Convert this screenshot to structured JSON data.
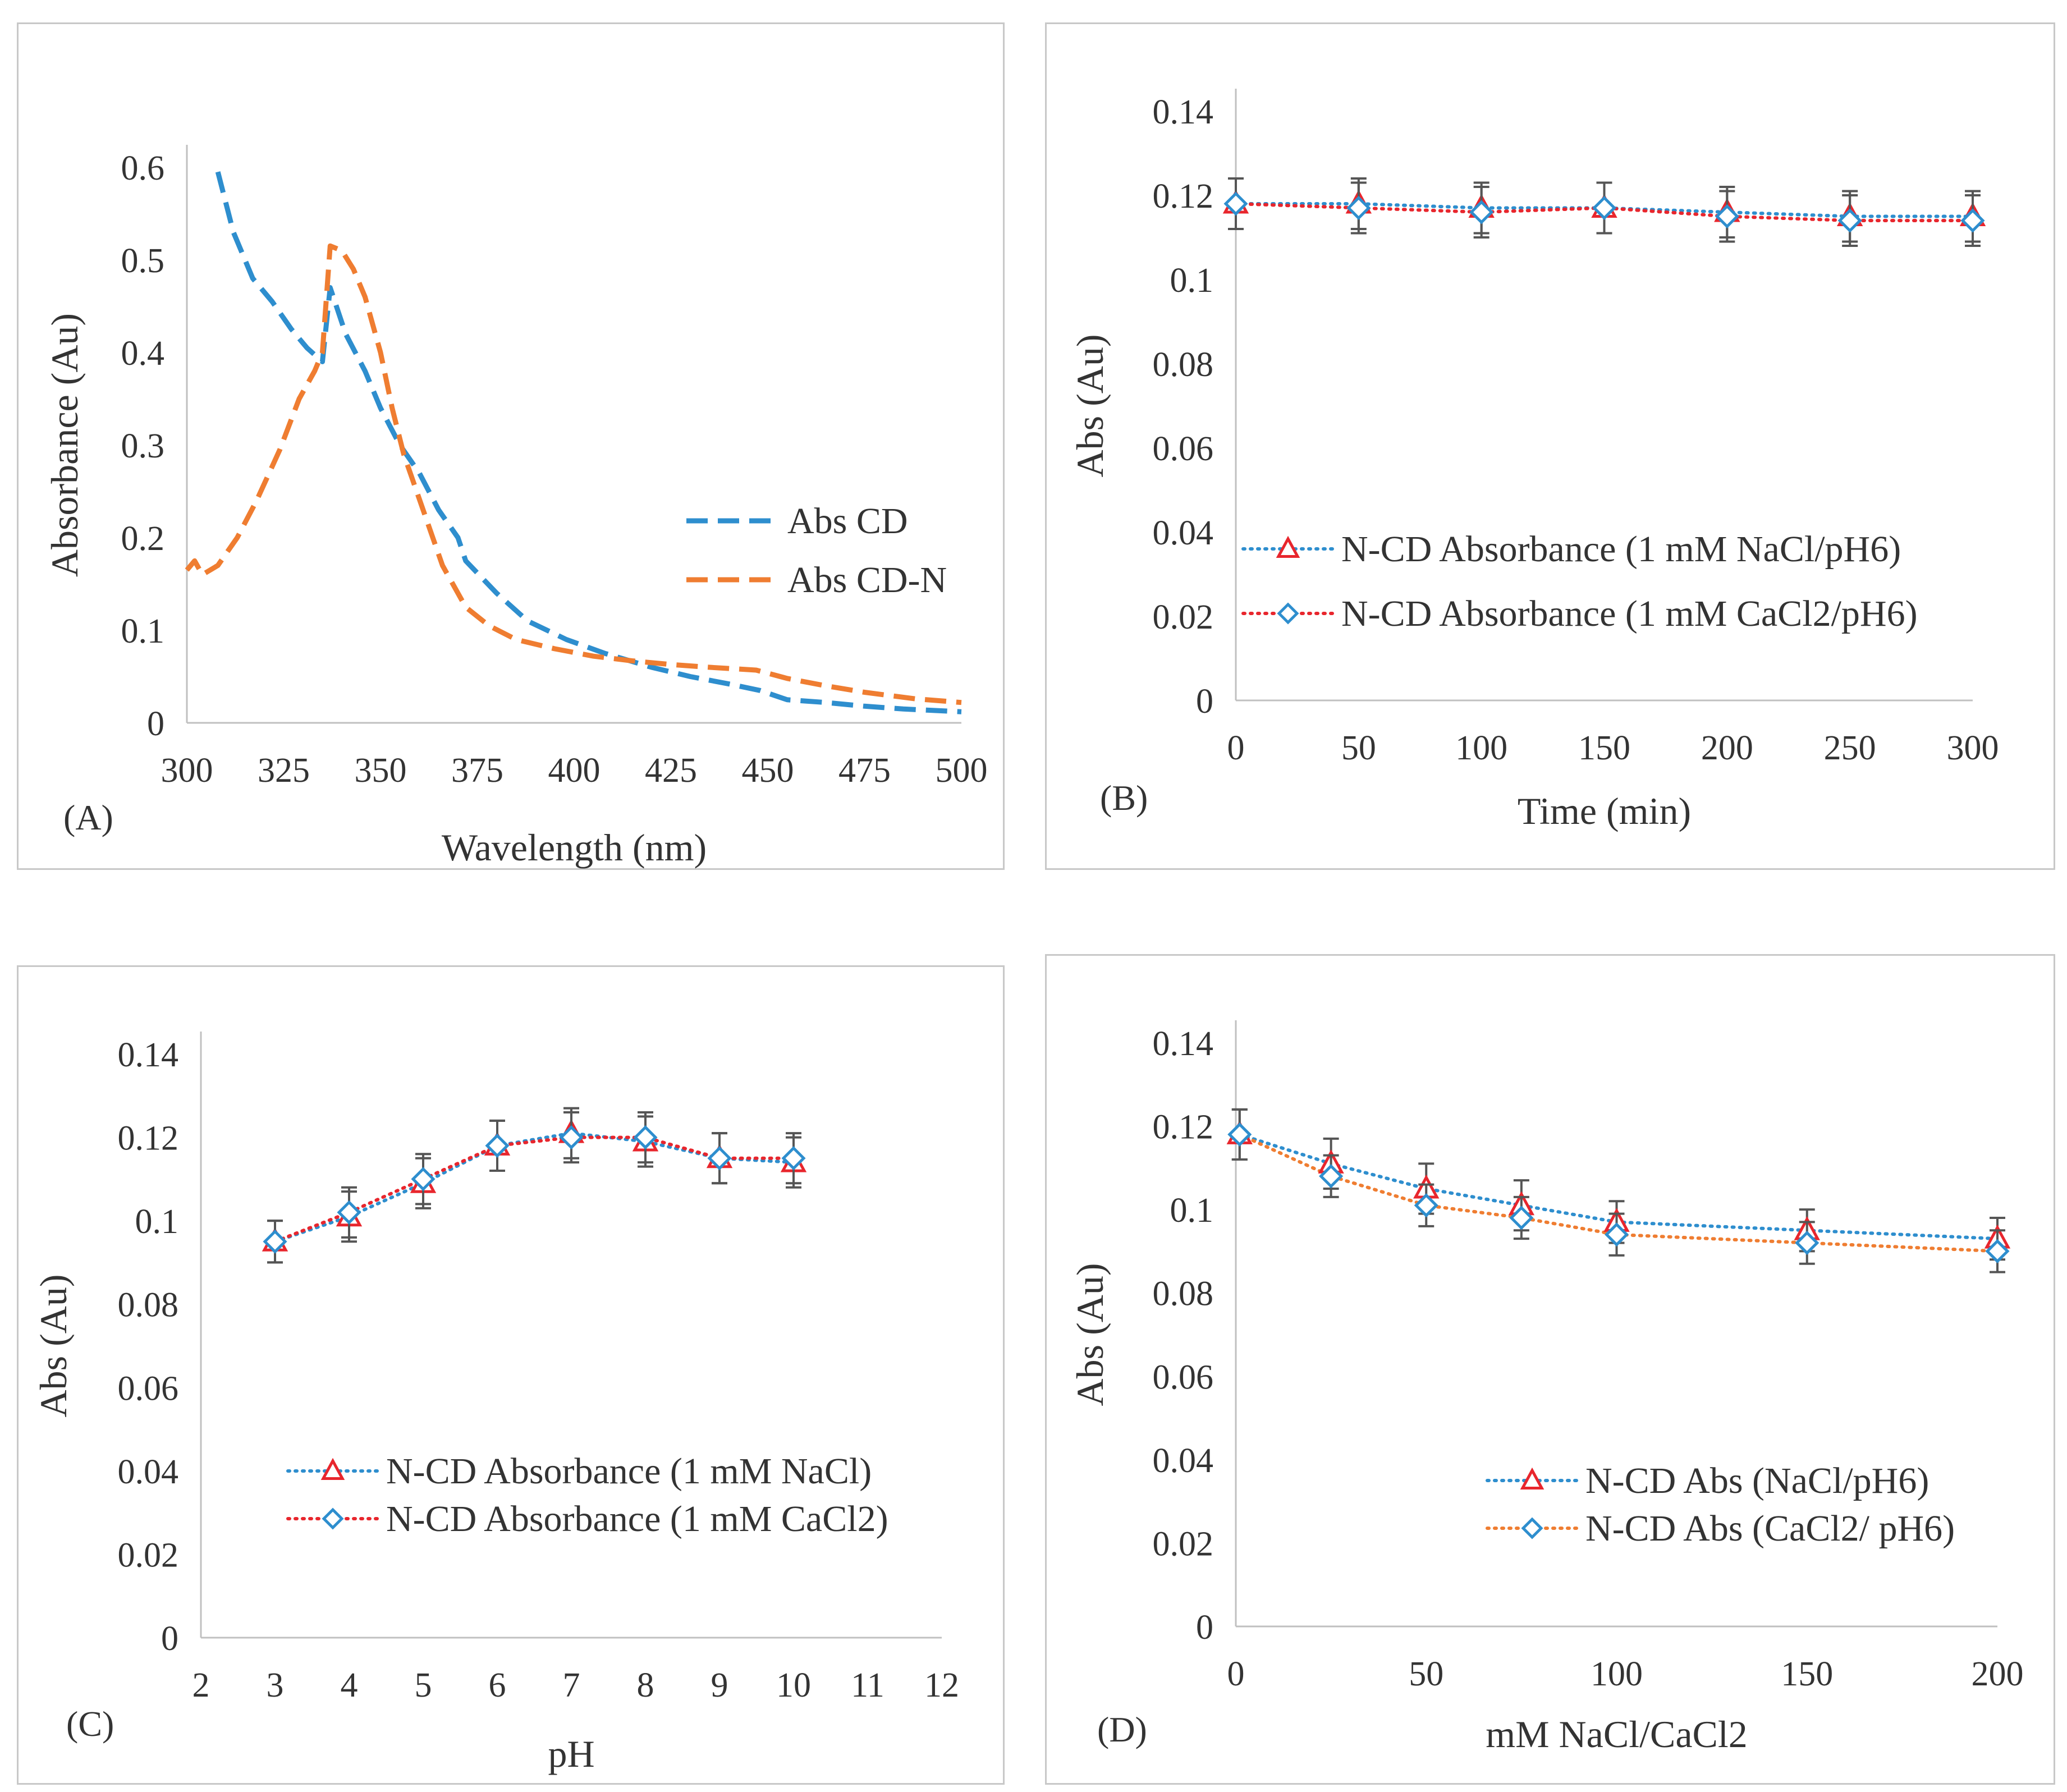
{
  "colors": {
    "blue": "#2e8ece",
    "orange": "#ef7d31",
    "red": "#e8262d",
    "error_bar": "#555555",
    "axis": "#c0c0c0",
    "text": "#333333"
  },
  "chart_data": [
    {
      "id": "A",
      "panel_label": "(A)",
      "type": "line",
      "xlabel": "Wavelength  (nm)",
      "ylabel": "Absorbance  (Au)",
      "xlim": [
        300,
        500
      ],
      "ylim": [
        0,
        0.6
      ],
      "xticks": [
        300,
        325,
        350,
        375,
        400,
        425,
        450,
        475,
        500
      ],
      "yticks": [
        0,
        0.1,
        0.2,
        0.3,
        0.4,
        0.5,
        0.6
      ],
      "ytick_labels": [
        "0",
        "0.1",
        "0.2",
        "0.3",
        "0.4",
        "0.5",
        "0.6"
      ],
      "legend_position": "right",
      "series": [
        {
          "name": "Abs CD",
          "color": "#2e8ece",
          "dash": "dashed",
          "points": [
            [
              308,
              0.595
            ],
            [
              312,
              0.53
            ],
            [
              317,
              0.48
            ],
            [
              322,
              0.455
            ],
            [
              327,
              0.425
            ],
            [
              331,
              0.405
            ],
            [
              335,
              0.39
            ],
            [
              337,
              0.47
            ],
            [
              341,
              0.42
            ],
            [
              346,
              0.38
            ],
            [
              350,
              0.34
            ],
            [
              355,
              0.3
            ],
            [
              360,
              0.27
            ],
            [
              365,
              0.23
            ],
            [
              370,
              0.2
            ],
            [
              372,
              0.175
            ],
            [
              380,
              0.14
            ],
            [
              388,
              0.11
            ],
            [
              398,
              0.09
            ],
            [
              408,
              0.075
            ],
            [
              420,
              0.06
            ],
            [
              430,
              0.05
            ],
            [
              440,
              0.042
            ],
            [
              448,
              0.035
            ],
            [
              455,
              0.025
            ],
            [
              465,
              0.022
            ],
            [
              475,
              0.018
            ],
            [
              485,
              0.015
            ],
            [
              500,
              0.012
            ]
          ]
        },
        {
          "name": "Abs CD-N",
          "color": "#ef7d31",
          "dash": "dashed",
          "points": [
            [
              300,
              0.165
            ],
            [
              302,
              0.175
            ],
            [
              304,
              0.16
            ],
            [
              308,
              0.17
            ],
            [
              313,
              0.2
            ],
            [
              318,
              0.24
            ],
            [
              324,
              0.295
            ],
            [
              329,
              0.35
            ],
            [
              333,
              0.38
            ],
            [
              335,
              0.4
            ],
            [
              337,
              0.515
            ],
            [
              340,
              0.51
            ],
            [
              343,
              0.49
            ],
            [
              346,
              0.46
            ],
            [
              350,
              0.4
            ],
            [
              353,
              0.34
            ],
            [
              356,
              0.29
            ],
            [
              361,
              0.23
            ],
            [
              366,
              0.17
            ],
            [
              372,
              0.125
            ],
            [
              378,
              0.105
            ],
            [
              385,
              0.09
            ],
            [
              395,
              0.08
            ],
            [
              405,
              0.072
            ],
            [
              415,
              0.067
            ],
            [
              425,
              0.063
            ],
            [
              435,
              0.06
            ],
            [
              447,
              0.057
            ],
            [
              455,
              0.048
            ],
            [
              465,
              0.04
            ],
            [
              475,
              0.033
            ],
            [
              488,
              0.026
            ],
            [
              500,
              0.022
            ]
          ]
        }
      ]
    },
    {
      "id": "B",
      "panel_label": "(B)",
      "type": "line",
      "xlabel": "Time (min)",
      "ylabel": "Abs (Au)",
      "xlim": [
        0,
        300
      ],
      "ylim": [
        0,
        0.14
      ],
      "xticks": [
        0,
        50,
        100,
        150,
        200,
        250,
        300
      ],
      "yticks": [
        0,
        0.02,
        0.04,
        0.06,
        0.08,
        0.1,
        0.12,
        0.14
      ],
      "ytick_labels": [
        "0",
        "0.02",
        "0.04",
        "0.06",
        "0.08",
        "0.1",
        "0.12",
        "0.14"
      ],
      "legend_position": "bottom-left",
      "series": [
        {
          "name": "N-CD Absorbance (1 mM NaCl/pH6)",
          "line_color": "#2e8ece",
          "marker": "triangle",
          "marker_color": "#e8262d",
          "x": [
            0,
            50,
            100,
            150,
            200,
            250,
            300
          ],
          "values": [
            0.118,
            0.118,
            0.117,
            0.117,
            0.116,
            0.115,
            0.115
          ],
          "error": [
            0.006,
            0.006,
            0.006,
            0.006,
            0.006,
            0.006,
            0.006
          ]
        },
        {
          "name": "N-CD Absorbance (1 mM CaCl2/pH6)",
          "line_color": "#e8262d",
          "marker": "diamond",
          "marker_color": "#2e8ece",
          "x": [
            0,
            50,
            100,
            150,
            200,
            250,
            300
          ],
          "values": [
            0.118,
            0.117,
            0.116,
            0.117,
            0.115,
            0.114,
            0.114
          ],
          "error": [
            0.006,
            0.006,
            0.006,
            0.006,
            0.006,
            0.006,
            0.006
          ]
        }
      ]
    },
    {
      "id": "C",
      "panel_label": "(C)",
      "type": "line",
      "xlabel": "pH",
      "ylabel": "Abs (Au)",
      "xlim": [
        2,
        12
      ],
      "ylim": [
        0,
        0.14
      ],
      "xticks": [
        2,
        3,
        4,
        5,
        6,
        7,
        8,
        9,
        10,
        11,
        12
      ],
      "yticks": [
        0,
        0.02,
        0.04,
        0.06,
        0.08,
        0.1,
        0.12,
        0.14
      ],
      "ytick_labels": [
        "0",
        "0.02",
        "0.04",
        "0.06",
        "0.08",
        "0.1",
        "0.12",
        "0.14"
      ],
      "legend_position": "bottom-right",
      "series": [
        {
          "name": "N-CD Absorbance (1 mM NaCl)",
          "line_color": "#2e8ece",
          "marker": "triangle",
          "marker_color": "#e8262d",
          "x": [
            3,
            4,
            5,
            6,
            7,
            8,
            9,
            10
          ],
          "values": [
            0.095,
            0.101,
            0.109,
            0.118,
            0.121,
            0.119,
            0.115,
            0.114
          ],
          "error": [
            0.005,
            0.006,
            0.006,
            0.006,
            0.006,
            0.006,
            0.006,
            0.006
          ]
        },
        {
          "name": "N-CD Absorbance (1 mM CaCl2)",
          "line_color": "#e8262d",
          "marker": "diamond",
          "marker_color": "#2e8ece",
          "x": [
            3,
            4,
            5,
            6,
            7,
            8,
            9,
            10
          ],
          "values": [
            0.095,
            0.102,
            0.11,
            0.118,
            0.12,
            0.12,
            0.115,
            0.115
          ],
          "error": [
            0.005,
            0.006,
            0.006,
            0.006,
            0.006,
            0.006,
            0.006,
            0.006
          ]
        }
      ]
    },
    {
      "id": "D",
      "panel_label": "(D)",
      "type": "line",
      "xlabel": "mM NaCl/CaCl2",
      "ylabel": "Abs (Au)",
      "xlim": [
        0,
        200
      ],
      "ylim": [
        0,
        0.14
      ],
      "xticks": [
        0,
        50,
        100,
        150,
        200
      ],
      "yticks": [
        0,
        0.02,
        0.04,
        0.06,
        0.08,
        0.1,
        0.12,
        0.14
      ],
      "ytick_labels": [
        "0",
        "0.02",
        "0.04",
        "0.06",
        "0.08",
        "0.1",
        "0.12",
        "0.14"
      ],
      "legend_position": "bottom-right",
      "series": [
        {
          "name": "N-CD Abs (NaCl/pH6)",
          "line_color": "#2e8ece",
          "marker": "triangle",
          "marker_color": "#e8262d",
          "x": [
            1,
            25,
            50,
            75,
            100,
            150,
            200
          ],
          "values": [
            0.118,
            0.111,
            0.105,
            0.101,
            0.097,
            0.095,
            0.093
          ],
          "error": [
            0.006,
            0.006,
            0.006,
            0.006,
            0.005,
            0.005,
            0.005
          ]
        },
        {
          "name": "N-CD Abs (CaCl2/ pH6)",
          "line_color": "#ef7d31",
          "marker": "diamond",
          "marker_color": "#2e8ece",
          "x": [
            1,
            25,
            50,
            75,
            100,
            150,
            200
          ],
          "values": [
            0.118,
            0.108,
            0.101,
            0.098,
            0.094,
            0.092,
            0.09
          ],
          "error": [
            0.006,
            0.005,
            0.005,
            0.005,
            0.005,
            0.005,
            0.005
          ]
        }
      ]
    }
  ]
}
